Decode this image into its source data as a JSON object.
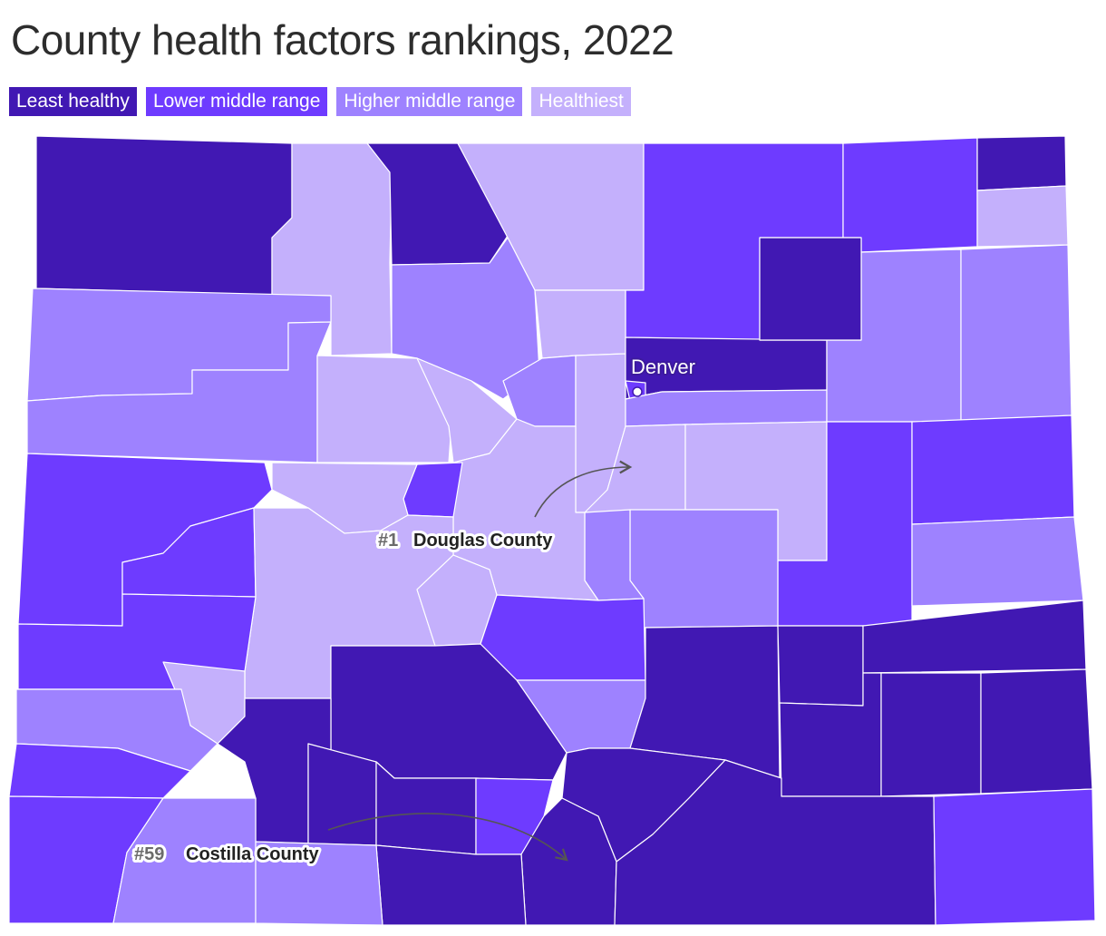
{
  "title": "County health factors rankings, 2022",
  "colors": {
    "least_healthy": "#4118b3",
    "lower_middle": "#6e3bff",
    "higher_middle": "#9e82ff",
    "healthiest": "#c4b0fc",
    "border": "#ffffff",
    "arrow": "#555555"
  },
  "legend": [
    {
      "label": "Least healthy",
      "category": "least_healthy"
    },
    {
      "label": "Lower middle range",
      "category": "lower_middle"
    },
    {
      "label": "Higher middle range",
      "category": "higher_middle"
    },
    {
      "label": "Healthiest",
      "category": "healthiest"
    }
  ],
  "city": {
    "label": "Denver"
  },
  "callouts": [
    {
      "rank": "#1",
      "name": "Douglas County"
    },
    {
      "rank": "#59",
      "name": "Costilla County"
    }
  ]
}
